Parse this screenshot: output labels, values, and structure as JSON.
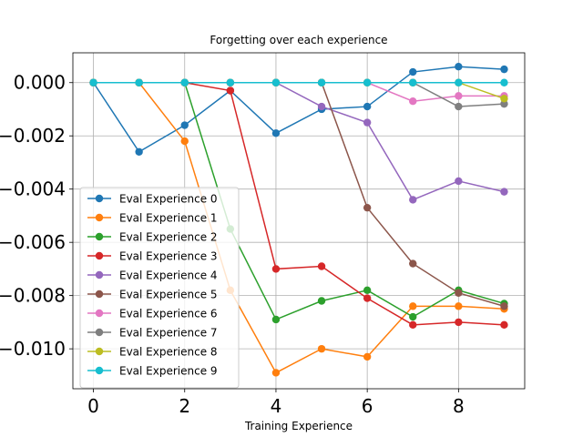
{
  "chart_data": {
    "type": "line",
    "title": "Forgetting over each experience",
    "xlabel": "Training Experience",
    "ylabel": "",
    "x": [
      0,
      1,
      2,
      3,
      4,
      5,
      6,
      7,
      8,
      9
    ],
    "xlim": [
      -0.45,
      9.45
    ],
    "ylim": [
      -0.0115,
      0.00112
    ],
    "xticks": [
      0,
      2,
      4,
      6,
      8
    ],
    "xtick_labels": [
      "0",
      "2",
      "4",
      "6",
      "8"
    ],
    "yticks": [
      0.0,
      -0.002,
      -0.004,
      -0.006,
      -0.008,
      -0.01
    ],
    "ytick_labels": [
      "0.000",
      "−0.002",
      "−0.004",
      "−0.006",
      "−0.008",
      "−0.010"
    ],
    "grid": true,
    "legend_position": "lower-left",
    "series": [
      {
        "name": "Eval Experience 0",
        "color": "#1f77b4",
        "values": [
          0,
          -0.0026,
          -0.0016,
          -0.0003,
          -0.0019,
          -0.001,
          -0.0009,
          0.0004,
          0.0006,
          0.0005
        ]
      },
      {
        "name": "Eval Experience 1",
        "color": "#ff7f0e",
        "values": [
          0,
          0,
          -0.0022,
          -0.0078,
          -0.0109,
          -0.01,
          -0.0103,
          -0.0084,
          -0.0084,
          -0.0085
        ]
      },
      {
        "name": "Eval Experience 2",
        "color": "#2ca02c",
        "values": [
          0,
          0,
          0,
          -0.0055,
          -0.0089,
          -0.0082,
          -0.0078,
          -0.0088,
          -0.0078,
          -0.0083
        ]
      },
      {
        "name": "Eval Experience 3",
        "color": "#d62728",
        "values": [
          0,
          0,
          0,
          -0.0003,
          -0.007,
          -0.0069,
          -0.0081,
          -0.0091,
          -0.009,
          -0.0091
        ]
      },
      {
        "name": "Eval Experience 4",
        "color": "#9467bd",
        "values": [
          0,
          0,
          0,
          0,
          0,
          -0.0009,
          -0.0015,
          -0.0044,
          -0.0037,
          -0.0041
        ]
      },
      {
        "name": "Eval Experience 5",
        "color": "#8c564b",
        "values": [
          0,
          0,
          0,
          0,
          0,
          0,
          -0.0047,
          -0.0068,
          -0.0079,
          -0.0084
        ]
      },
      {
        "name": "Eval Experience 6",
        "color": "#e377c2",
        "values": [
          0,
          0,
          0,
          0,
          0,
          0,
          0,
          -0.0007,
          -0.0005,
          -0.0005
        ]
      },
      {
        "name": "Eval Experience 7",
        "color": "#7f7f7f",
        "values": [
          0,
          0,
          0,
          0,
          0,
          0,
          0,
          0,
          -0.0009,
          -0.0008
        ]
      },
      {
        "name": "Eval Experience 8",
        "color": "#bcbd22",
        "values": [
          0,
          0,
          0,
          0,
          0,
          0,
          0,
          0,
          0,
          -0.0006
        ]
      },
      {
        "name": "Eval Experience 9",
        "color": "#17becf",
        "values": [
          0,
          0,
          0,
          0,
          0,
          0,
          0,
          0,
          0,
          0
        ]
      }
    ]
  }
}
